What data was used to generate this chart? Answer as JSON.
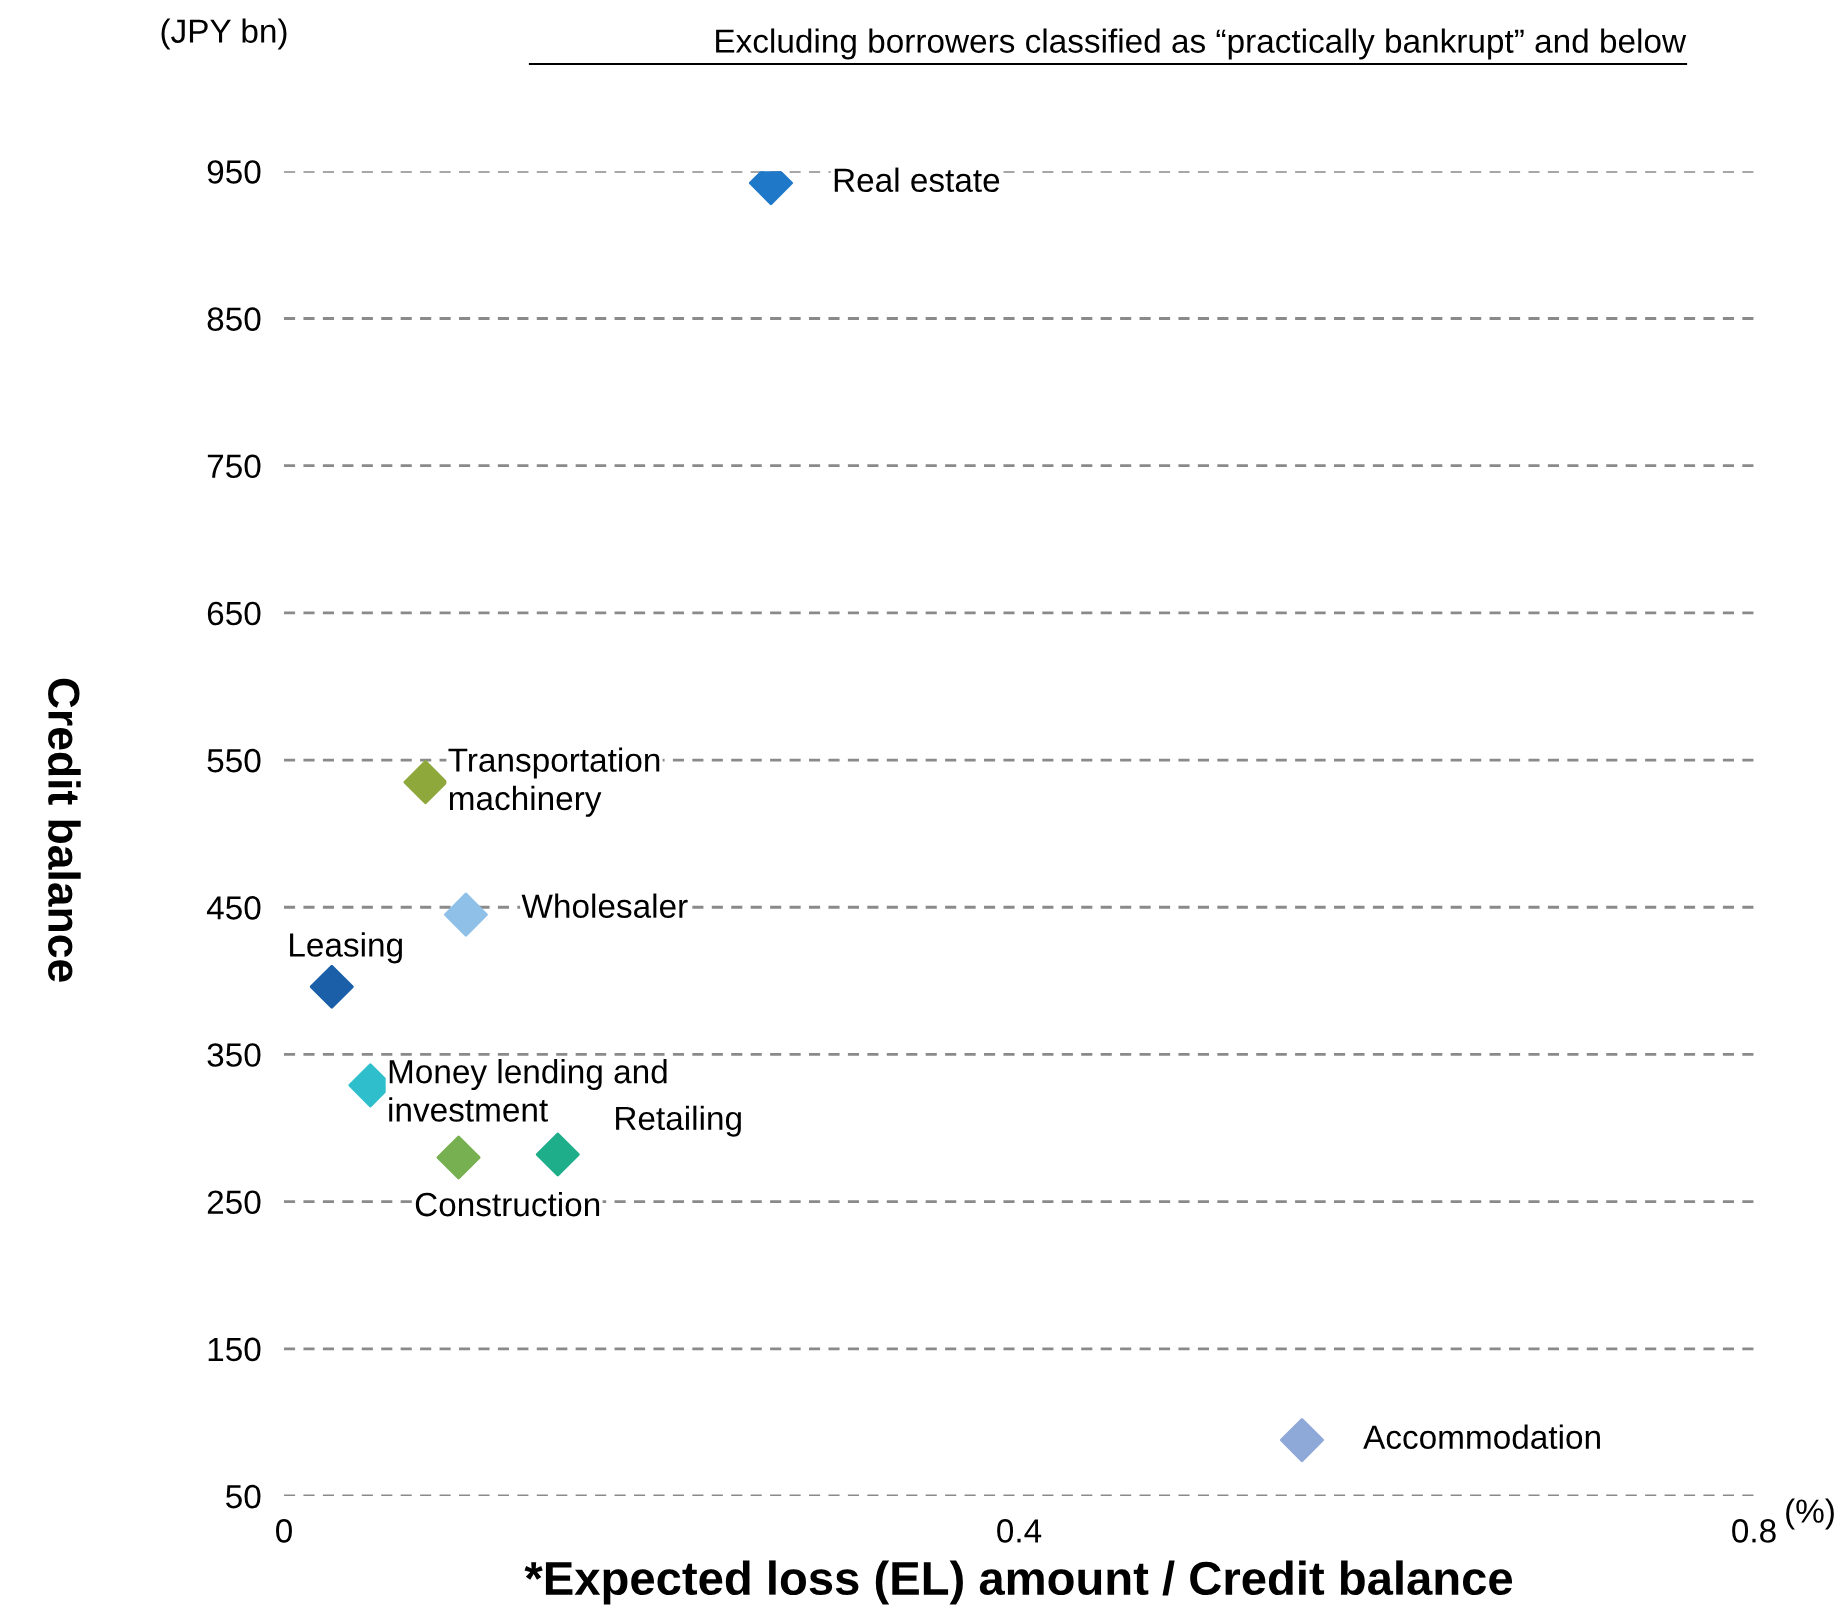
{
  "chart_data": {
    "type": "scatter",
    "title": "Excluding borrowers classified as “practically bankrupt” and below",
    "xlabel": "*Expected loss (EL) amount / Credit balance",
    "ylabel": "Credit balance",
    "annotations": [
      "(JPY bn)",
      "(%)"
    ],
    "series": [
      {
        "name": "Real estate",
        "color": "#1f78c8",
        "x": [
          0.265
        ],
        "values": [
          942
        ]
      },
      {
        "name": "Transportation\nmachinery",
        "color": "#8fa83c",
        "x": [
          0.077
        ],
        "values": [
          535
        ]
      },
      {
        "name": "Wholesaler",
        "color": "#8fc0e8",
        "x": [
          0.099
        ],
        "values": [
          445
        ]
      },
      {
        "name": "Leasing",
        "color": "#1a5fa8",
        "x": [
          0.026
        ],
        "values": [
          396
        ]
      },
      {
        "name": "Money lending and\ninvestment",
        "color": "#2fbfcc",
        "x": [
          0.047
        ],
        "values": [
          329
        ]
      },
      {
        "name": "Construction",
        "color": "#77b050",
        "x": [
          0.095
        ],
        "values": [
          280
        ]
      },
      {
        "name": "Retailing",
        "color": "#1fae8a",
        "x": [
          0.149
        ],
        "values": [
          282
        ]
      },
      {
        "name": "Accommodation",
        "color": "#8ea8d8",
        "x": [
          0.554
        ],
        "values": [
          88
        ]
      }
    ],
    "xlim": [
      0,
      0.8
    ],
    "xticks": [
      0,
      0.4,
      0.8
    ],
    "ylim": [
      50,
      950
    ],
    "yticks": [
      50,
      150,
      250,
      350,
      450,
      550,
      650,
      750,
      850,
      950
    ],
    "grid": "y",
    "marker": "diamond",
    "legend": false
  }
}
